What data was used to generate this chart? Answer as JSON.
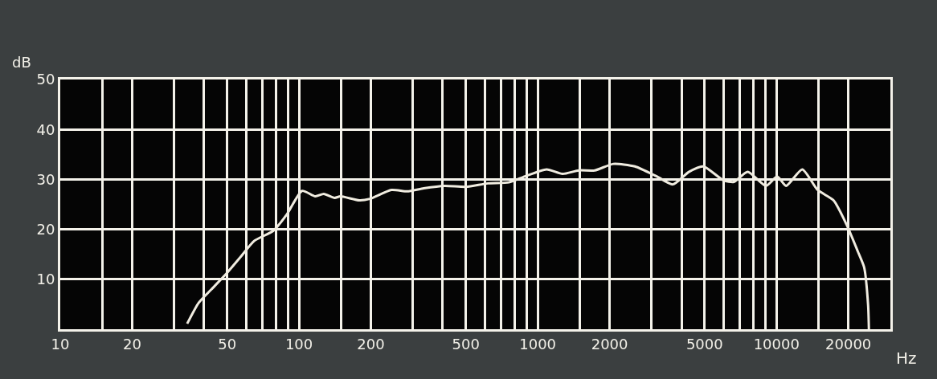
{
  "chart_data": {
    "type": "line",
    "xlabel": "Hz",
    "ylabel": "dB",
    "x": [
      34,
      38,
      43,
      50,
      57,
      65,
      78,
      89,
      103,
      117,
      127,
      141,
      149,
      179,
      198,
      244,
      285,
      333,
      407,
      501,
      618,
      757,
      884,
      1089,
      1271,
      1485,
      1734,
      2072,
      2553,
      3150,
      3679,
      4295,
      4938,
      5998,
      6636,
      7570,
      9040,
      10070,
      10970,
      12820,
      14860,
      17340,
      19640,
      21900,
      23290,
      24200,
      24380
    ],
    "series": [
      {
        "color": "#f0ece0",
        "values": [
          1.1,
          5.3,
          8.0,
          11.3,
          14.5,
          17.7,
          19.7,
          23.0,
          27.7,
          26.6,
          27.1,
          26.3,
          26.6,
          25.8,
          26.1,
          27.9,
          27.6,
          28.2,
          28.7,
          28.5,
          29.2,
          29.4,
          30.6,
          32.0,
          31.1,
          31.8,
          31.8,
          33.1,
          32.6,
          30.6,
          29.0,
          31.5,
          32.6,
          29.8,
          29.5,
          31.5,
          28.7,
          30.6,
          28.7,
          32.0,
          27.9,
          25.8,
          21.0,
          15.6,
          12.4,
          4.8,
          0
        ]
      }
    ],
    "log": "x",
    "xlim": [
      10,
      30000
    ],
    "xticks": [
      10,
      {
        "value": 15,
        "label": null
      },
      20,
      {
        "value": 30,
        "label": null
      },
      {
        "value": 40,
        "label": null
      },
      50,
      {
        "value": 60,
        "label": null
      },
      {
        "value": 70,
        "label": null
      },
      {
        "value": 80,
        "label": null
      },
      {
        "value": 90,
        "label": null
      },
      100,
      {
        "value": 150,
        "label": null
      },
      200,
      {
        "value": 300,
        "label": null
      },
      {
        "value": 400,
        "label": null
      },
      500,
      {
        "value": 600,
        "label": null
      },
      {
        "value": 700,
        "label": null
      },
      {
        "value": 800,
        "label": null
      },
      {
        "value": 900,
        "label": null
      },
      1000,
      {
        "value": 1500,
        "label": null
      },
      2000,
      {
        "value": 3000,
        "label": null
      },
      {
        "value": 4000,
        "label": null
      },
      5000,
      {
        "value": 6000,
        "label": null
      },
      {
        "value": 7000,
        "label": null
      },
      {
        "value": 8000,
        "label": null
      },
      {
        "value": 9000,
        "label": null
      },
      10000,
      {
        "value": 15000,
        "label": null
      },
      20000
    ],
    "ylim": [
      0,
      50
    ],
    "yticks": [
      10,
      20,
      30,
      40,
      50
    ],
    "grid": true,
    "line_style": "solid",
    "marker": "none"
  }
}
